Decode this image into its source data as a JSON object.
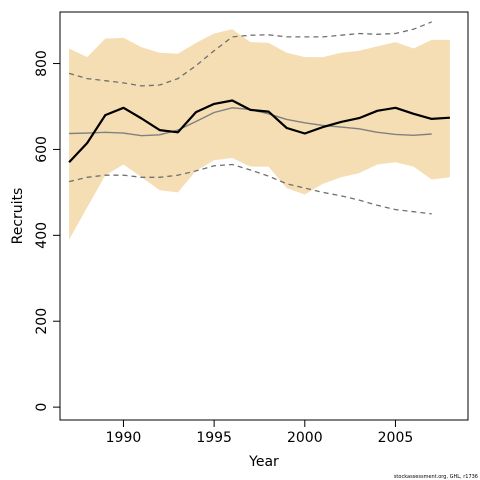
{
  "chart_data": {
    "type": "line",
    "xlabel": "Year",
    "ylabel": "Recruits",
    "xlim": [
      1986.5,
      2009.0
    ],
    "ylim": [
      -30,
      920
    ],
    "xticks": [
      1990,
      1995,
      2000,
      2005
    ],
    "yticks": [
      0,
      200,
      400,
      600,
      800
    ],
    "footnote": "stockassessment.org, GHL, r1736",
    "colors": {
      "band": "#f5deb3",
      "estimate": "#000000",
      "smooth": "#808080",
      "ci_dashed": "#707070"
    },
    "band": {
      "x": [
        1987,
        1988,
        1989,
        1990,
        1991,
        1992,
        1993,
        1994,
        1995,
        1996,
        1997,
        1998,
        1999,
        2000,
        2001,
        2002,
        2003,
        2004,
        2005,
        2006,
        2007,
        2008
      ],
      "lower": [
        390,
        465,
        540,
        565,
        535,
        505,
        500,
        550,
        575,
        580,
        560,
        560,
        510,
        495,
        520,
        535,
        545,
        565,
        570,
        560,
        530,
        535
      ],
      "upper": [
        835,
        815,
        858,
        860,
        838,
        825,
        823,
        848,
        870,
        880,
        850,
        848,
        825,
        815,
        815,
        825,
        830,
        840,
        850,
        835,
        855,
        855
      ]
    },
    "series": [
      {
        "key": "estimate",
        "x": [
          1987,
          1988,
          1989,
          1990,
          1991,
          1992,
          1993,
          1994,
          1995,
          1996,
          1997,
          1998,
          1999,
          2000,
          2001,
          2002,
          2003,
          2004,
          2005,
          2006,
          2007,
          2008
        ],
        "values": [
          570,
          615,
          680,
          697,
          672,
          645,
          640,
          687,
          706,
          714,
          692,
          688,
          650,
          637,
          652,
          664,
          673,
          690,
          697,
          683,
          671,
          674
        ]
      },
      {
        "key": "smooth",
        "x": [
          1987,
          1988,
          1989,
          1990,
          1991,
          1992,
          1993,
          1994,
          1995,
          1996,
          1997,
          1998,
          1999,
          2000,
          2001,
          2002,
          2003,
          2004,
          2005,
          2006,
          2007
        ],
        "values": [
          637,
          638,
          640,
          638,
          632,
          634,
          645,
          665,
          686,
          697,
          693,
          683,
          670,
          662,
          656,
          652,
          648,
          640,
          635,
          633,
          636
        ]
      },
      {
        "key": "upper_dashed",
        "x": [
          1987,
          1988,
          1989,
          1990,
          1991,
          1992,
          1993,
          1994,
          1995,
          1996,
          1997,
          1998,
          1999,
          2000,
          2001,
          2002,
          2003,
          2004,
          2005,
          2006,
          2007
        ],
        "values": [
          777,
          765,
          760,
          755,
          748,
          750,
          765,
          795,
          830,
          862,
          866,
          867,
          862,
          862,
          862,
          866,
          870,
          868,
          870,
          880,
          897
        ]
      },
      {
        "key": "lower_dashed",
        "x": [
          1987,
          1988,
          1989,
          1990,
          1991,
          1992,
          1993,
          1994,
          1995,
          1996,
          1997,
          1998,
          1999,
          2000,
          2001,
          2002,
          2003,
          2004,
          2005,
          2006,
          2007
        ],
        "values": [
          525,
          535,
          540,
          540,
          535,
          535,
          540,
          550,
          562,
          565,
          552,
          538,
          520,
          510,
          500,
          492,
          482,
          470,
          460,
          455,
          450
        ]
      }
    ]
  }
}
